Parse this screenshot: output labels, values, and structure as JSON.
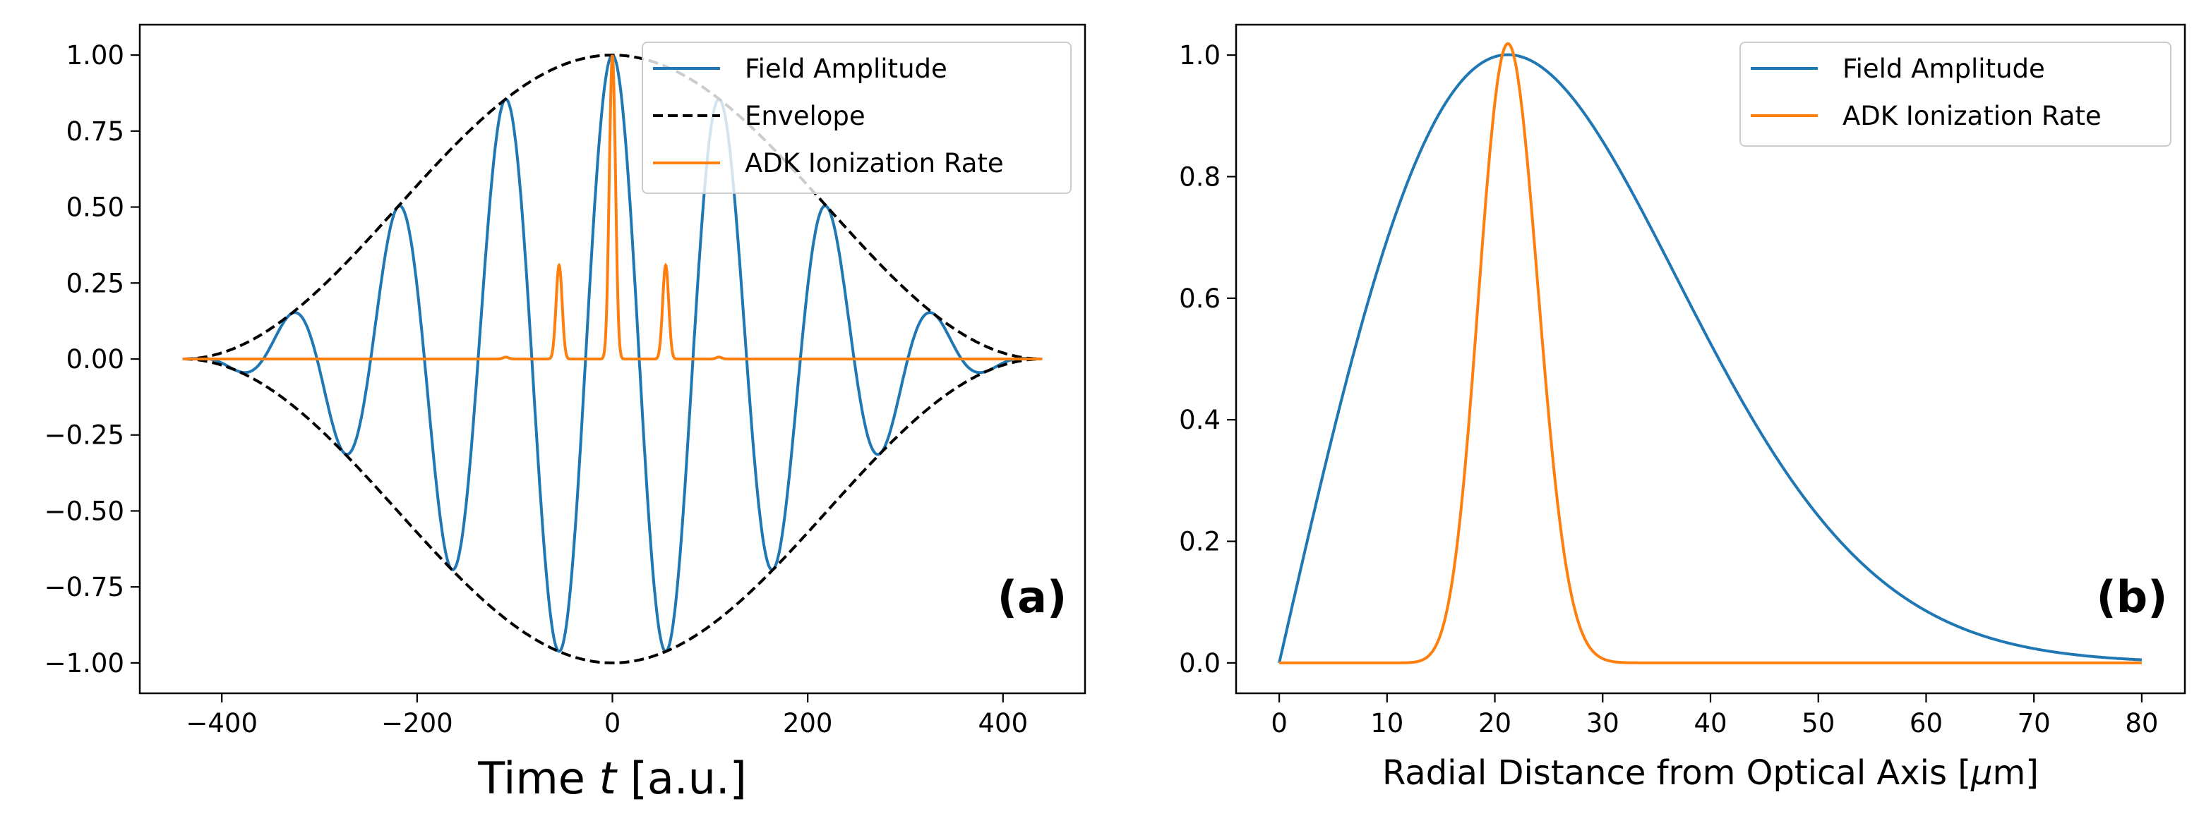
{
  "chart_data": [
    {
      "type": "line",
      "panel_label": "(a)",
      "xlabel_parts": [
        "Time ",
        "t",
        " [a.u.]"
      ],
      "ylabel": "",
      "xlim": [
        -484,
        484
      ],
      "ylim": [
        -1.1,
        1.1
      ],
      "xticks": [
        -400,
        -200,
        0,
        200,
        400
      ],
      "xtick_labels": [
        "−400",
        "−200",
        "0",
        "200",
        "400"
      ],
      "yticks": [
        1.0,
        0.75,
        0.5,
        0.25,
        0.0,
        -0.25,
        -0.5,
        -0.75,
        -1.0
      ],
      "ytick_labels": [
        "1.00",
        "0.75",
        "0.50",
        "0.25",
        "0.00",
        "−0.25",
        "−0.50",
        "−0.75",
        "−1.00"
      ],
      "grid": false,
      "legend_position": "top-right",
      "series": [
        {
          "name": "Field Amplitude",
          "color": "#1f77b4",
          "style": "solid",
          "model": "cos^2(pi*t/880)*cos(2*pi*t/110), t in [-440,440]",
          "extrema": [
            [
              -385,
              -0.04
            ],
            [
              -330,
              0.15
            ],
            [
              -275,
              -0.31
            ],
            [
              -220,
              0.5
            ],
            [
              -165,
              -0.69
            ],
            [
              -110,
              0.85
            ],
            [
              -55,
              -0.96
            ],
            [
              0,
              1.0
            ],
            [
              55,
              -0.96
            ],
            [
              110,
              0.85
            ],
            [
              165,
              -0.69
            ],
            [
              220,
              0.5
            ],
            [
              275,
              -0.31
            ],
            [
              330,
              0.15
            ],
            [
              385,
              -0.04
            ]
          ]
        },
        {
          "name": "Envelope",
          "color": "#000000",
          "style": "dashed",
          "model": "±cos^2(pi*t/880)",
          "points": [
            [
              -440,
              0
            ],
            [
              -220,
              0.5
            ],
            [
              0,
              1.0
            ],
            [
              220,
              0.5
            ],
            [
              440,
              0
            ]
          ]
        },
        {
          "name": "ADK Ionization Rate",
          "color": "#ff7f0e",
          "style": "solid",
          "model": "exp(-30/|E| + 30), normalized",
          "peaks": [
            [
              -110,
              0.006
            ],
            [
              -55,
              0.3
            ],
            [
              0,
              1.0
            ],
            [
              55,
              0.3
            ],
            [
              110,
              0.006
            ]
          ]
        }
      ]
    },
    {
      "type": "line",
      "panel_label": "(b)",
      "xlabel_parts": [
        "Radial Distance from Optical Axis [",
        "μ",
        "m]"
      ],
      "ylabel": "",
      "xlim": [
        -4,
        84
      ],
      "ylim": [
        -0.05,
        1.05
      ],
      "xticks": [
        0,
        10,
        20,
        30,
        40,
        50,
        60,
        70,
        80
      ],
      "xtick_labels": [
        "0",
        "10",
        "20",
        "30",
        "40",
        "50",
        "60",
        "70",
        "80"
      ],
      "yticks": [
        0.0,
        0.2,
        0.4,
        0.6,
        0.8,
        1.0
      ],
      "ytick_labels": [
        "0.0",
        "0.2",
        "0.4",
        "0.6",
        "0.8",
        "1.0"
      ],
      "grid": false,
      "legend_position": "top-right",
      "series": [
        {
          "name": "Field Amplitude",
          "color": "#1f77b4",
          "style": "solid",
          "model": "(r/21.2)*exp(0.5 - r^2/900), r in [0,80]",
          "points": [
            [
              0,
              0
            ],
            [
              10,
              0.63
            ],
            [
              21.2,
              1.0
            ],
            [
              30,
              0.86
            ],
            [
              40,
              0.53
            ],
            [
              50,
              0.25
            ],
            [
              60,
              0.09
            ],
            [
              70,
              0.025
            ],
            [
              80,
              0.005
            ]
          ]
        },
        {
          "name": "ADK Ionization Rate",
          "color": "#ff7f0e",
          "style": "solid",
          "model": "exp(-30/A + 30), A = field amplitude",
          "points": [
            [
              0,
              0
            ],
            [
              13,
              0.0
            ],
            [
              17.7,
              0.5
            ],
            [
              21.2,
              1.0
            ],
            [
              24.5,
              0.5
            ],
            [
              30,
              0.0
            ],
            [
              80,
              0
            ]
          ]
        }
      ]
    }
  ]
}
